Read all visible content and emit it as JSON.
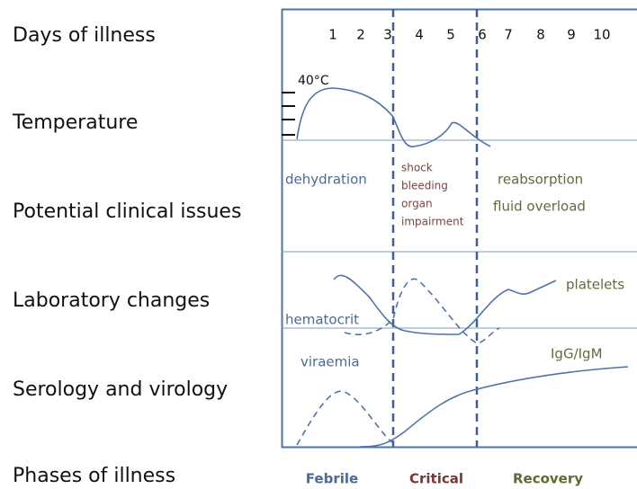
{
  "rows": [
    "Days of illness",
    "Temperature",
    "Potential clinical issues",
    "Laboratory changes",
    "Serology and virology",
    "Phases of illness"
  ],
  "days": [
    "1",
    "2",
    "3",
    "4",
    "5",
    "6",
    "7",
    "8",
    "9",
    "10"
  ],
  "temperature": {
    "label": "40°C"
  },
  "clinical_issues": {
    "febrile": "dehydration",
    "critical": [
      "shock",
      "bleeding",
      "organ",
      "impairment"
    ],
    "recovery": [
      "reabsorption",
      "fluid overload"
    ]
  },
  "laboratory": {
    "platelets": "platelets",
    "hematocrit": "hematocrit"
  },
  "serology": {
    "viraemia": "viraemia",
    "antibodies": "IgG/IgM"
  },
  "phases": [
    "Febrile",
    "Critical",
    "Recovery"
  ]
}
